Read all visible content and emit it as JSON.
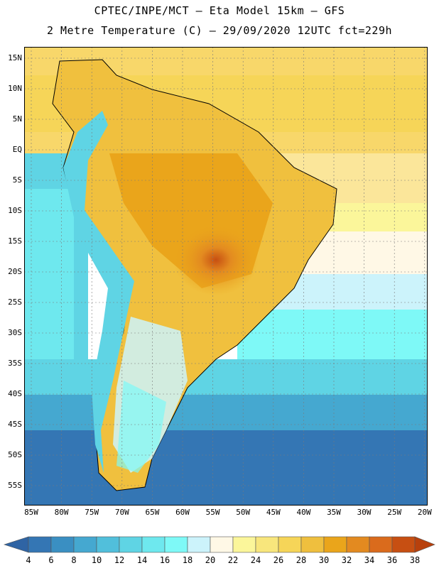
{
  "header": {
    "line1": "CPTEC/INPE/MCT –  Eta Model 15km – GFS",
    "line2": "2 Metre Temperature (C) – 29/09/2020 12UTC fct=229h"
  },
  "axes": {
    "lat_labels": [
      "15N",
      "10N",
      "5N",
      "EQ",
      "5S",
      "10S",
      "15S",
      "20S",
      "25S",
      "30S",
      "35S",
      "40S",
      "45S",
      "50S",
      "55S"
    ],
    "lon_labels": [
      "85W",
      "80W",
      "75W",
      "70W",
      "65W",
      "60W",
      "55W",
      "50W",
      "45W",
      "40W",
      "35W",
      "30W",
      "25W",
      "20W"
    ]
  },
  "colorbar": {
    "labels": [
      "4",
      "6",
      "8",
      "10",
      "12",
      "14",
      "16",
      "18",
      "20",
      "22",
      "24",
      "26",
      "28",
      "30",
      "32",
      "34",
      "36",
      "38"
    ],
    "colors": [
      "#2f64a4",
      "#3476b4",
      "#3a8fc2",
      "#45a8d0",
      "#51bfdb",
      "#5fd4e4",
      "#6ee8ee",
      "#7ef9f7",
      "#ccf3fb",
      "#fff8e6",
      "#fbf69a",
      "#f8e67c",
      "#f6d558",
      "#efbf3e",
      "#eaa51b",
      "#e38a20",
      "#da6b1c",
      "#c74f12",
      "#b8400c"
    ]
  }
}
